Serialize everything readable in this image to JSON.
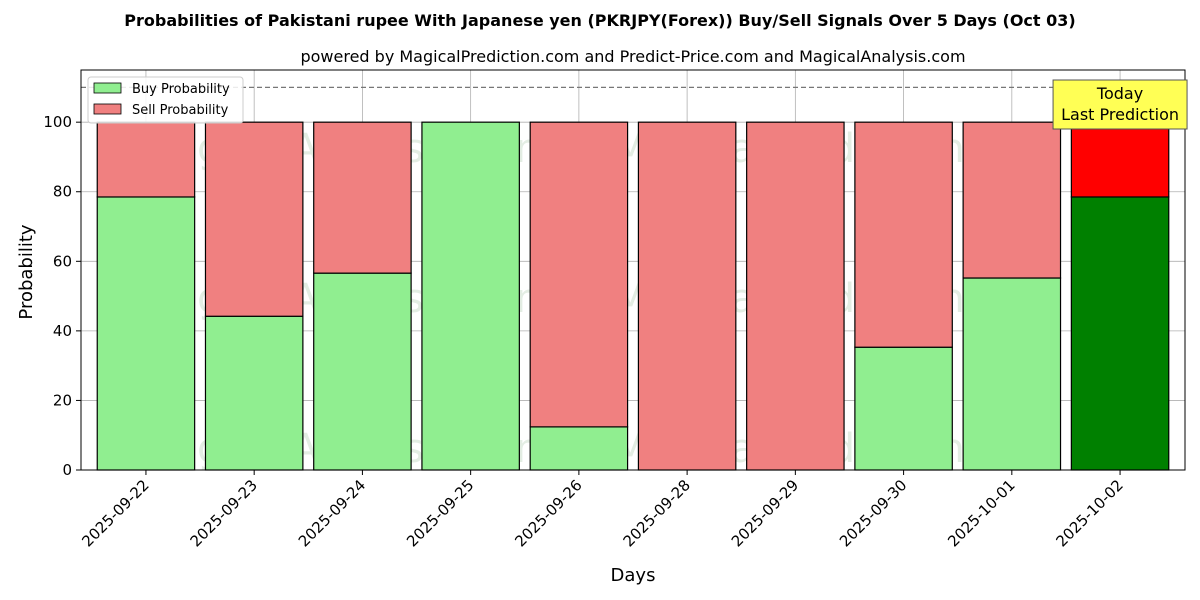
{
  "chart_data": {
    "type": "bar",
    "stacked": true,
    "title": "Probabilities of Pakistani rupee With Japanese yen (PKRJPY(Forex)) Buy/Sell Signals Over 5 Days (Oct 03)",
    "subtitle": "powered by MagicalPrediction.com and Predict-Price.com and MagicalAnalysis.com",
    "xlabel": "Days",
    "ylabel": "Probability",
    "ylim": [
      0,
      115
    ],
    "yticks": [
      0,
      20,
      40,
      60,
      80,
      100
    ],
    "grid": true,
    "reference_line": 110,
    "legend_position": "top-left",
    "categories": [
      "2025-09-22",
      "2025-09-23",
      "2025-09-24",
      "2025-09-25",
      "2025-09-26",
      "2025-09-28",
      "2025-09-29",
      "2025-09-30",
      "2025-10-01",
      "2025-10-02"
    ],
    "series": [
      {
        "name": "Buy Probability",
        "values": [
          78.5,
          44.2,
          56.6,
          100,
          12.4,
          0,
          0,
          35.3,
          55.2,
          78.5
        ],
        "color": "#90ee90",
        "highlight_color": "#008000"
      },
      {
        "name": "Sell Probability",
        "values": [
          21.5,
          55.8,
          43.4,
          0,
          87.6,
          100,
          100,
          64.7,
          44.8,
          21.5
        ],
        "color": "#f08080",
        "highlight_color": "#ff0000"
      }
    ],
    "highlight_category": "2025-10-02",
    "annotation": {
      "lines": [
        "Today",
        "Last Prediction"
      ],
      "background": "#ffff55"
    },
    "watermarks": [
      "MagicalAnalysis.com",
      "MagicalPrediction.com",
      "MagicalAnalysis.com",
      "MagicalPrediction.com",
      "MagicalAnalysis.com",
      "MagicalPrediction.com"
    ]
  }
}
